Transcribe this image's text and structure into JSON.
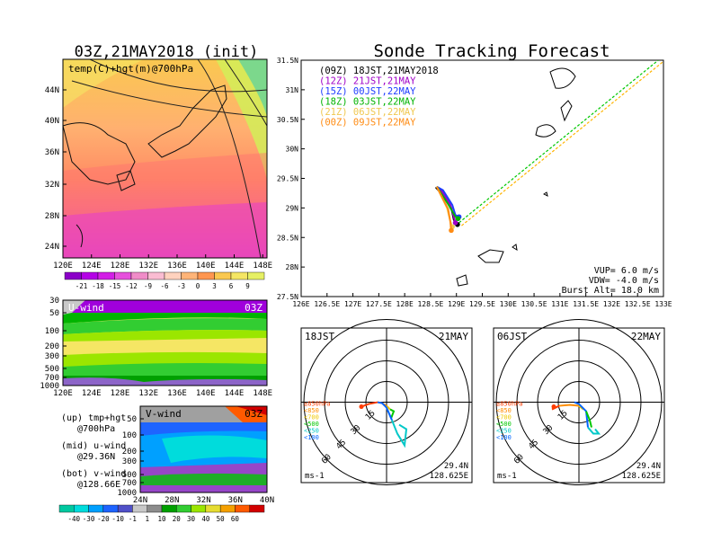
{
  "init_title": "03Z,21MAY2018 (init)",
  "main_title": "Sonde Tracking Forecast",
  "temp_map": {
    "label": "temp(C)+hgt(m)@700hPa",
    "lat_labels": [
      "44N",
      "40N",
      "36N",
      "32N",
      "28N",
      "24N"
    ],
    "lon_labels": [
      "120E",
      "124E",
      "128E",
      "132E",
      "136E",
      "140E",
      "144E",
      "148E"
    ],
    "colorbar_labels": [
      "-21",
      "-18",
      "-15",
      "-12",
      "-9",
      "-6",
      "-3",
      "0",
      "3",
      "6",
      "9"
    ],
    "colorbar_colors": [
      "#8b00c8",
      "#b400e6",
      "#d21ee6",
      "#e650dc",
      "#f08cc8",
      "#fabcd2",
      "#ffd2be",
      "#ffb478",
      "#ff9650",
      "#fac850",
      "#f5e664",
      "#e6f064"
    ]
  },
  "uwind": {
    "label": "U-wind",
    "time": "03Z",
    "p_labels": [
      "30",
      "50",
      "100",
      "200",
      "300",
      "500",
      "700",
      "1000"
    ],
    "lon_labels": [
      "120E",
      "124E",
      "128E",
      "132E",
      "136E",
      "140E",
      "144E",
      "148E"
    ]
  },
  "vwind": {
    "label": "V-wind",
    "time": "03Z",
    "p_labels": [
      "50",
      "100",
      "200",
      "300",
      "500",
      "700",
      "1000"
    ],
    "lat_labels": [
      "24N",
      "28N",
      "32N",
      "36N",
      "40N"
    ]
  },
  "legend_text": {
    "up1": "(up) tmp+hgt",
    "up2": "@700hPa",
    "mid1": "(mid) u-wind",
    "mid2": "@29.36N",
    "bot1": "(bot) v-wind",
    "bot2": "@128.66E"
  },
  "wind_colorbar": {
    "labels": [
      "-40",
      "-30",
      "-20",
      "-10",
      "-1",
      "1",
      "10",
      "20",
      "30",
      "40",
      "50",
      "60"
    ],
    "colors": [
      "#00c8a0",
      "#00dcdc",
      "#00a0ff",
      "#1e64ff",
      "#5050c8",
      "#c8c8c8",
      "#8c8c8c",
      "#00a000",
      "#32cd32",
      "#9be600",
      "#e6dc32",
      "#f5a000",
      "#ff5a00",
      "#d20000"
    ]
  },
  "chart_data": {
    "type": "line",
    "xlim": [
      126,
      133
    ],
    "ylim": [
      27.5,
      31.5
    ],
    "x_ticks": [
      "126E",
      "126.5E",
      "127E",
      "127.5E",
      "128E",
      "128.5E",
      "129E",
      "129.5E",
      "130E",
      "130.5E",
      "131E",
      "131.5E",
      "132E",
      "132.5E",
      "133E"
    ],
    "y_ticks": [
      "31.5N",
      "31N",
      "30.5N",
      "30N",
      "29.5N",
      "29N",
      "28.5N",
      "28N",
      "27.5N"
    ],
    "series": [
      {
        "name": "(09Z)  18JST,21MAY2018",
        "color": "#000000",
        "points": [
          [
            128.6,
            29.35
          ],
          [
            128.7,
            29.25
          ],
          [
            128.9,
            29.0
          ],
          [
            128.95,
            28.8
          ],
          [
            129.02,
            28.72
          ]
        ],
        "end": [
          129.02,
          28.72
        ]
      },
      {
        "name": "(12Z)  21JST,21MAY",
        "color": "#a000c8",
        "points": [
          [
            128.62,
            29.36
          ],
          [
            128.72,
            29.28
          ],
          [
            128.88,
            29.05
          ],
          [
            128.95,
            28.85
          ],
          [
            128.98,
            28.75
          ]
        ],
        "end": [
          128.98,
          28.75
        ]
      },
      {
        "name": "(15Z)  00JST,22MAY",
        "color": "#1e3cff",
        "points": [
          [
            128.62,
            29.36
          ],
          [
            128.74,
            29.3
          ],
          [
            128.92,
            29.05
          ],
          [
            128.98,
            28.88
          ],
          [
            129.05,
            28.85
          ]
        ],
        "end": [
          129.05,
          28.85
        ]
      },
      {
        "name": "(18Z)  03JST,22MAY",
        "color": "#00b400",
        "points": [
          [
            128.62,
            29.36
          ],
          [
            128.7,
            29.25
          ],
          [
            128.85,
            29.05
          ],
          [
            128.98,
            28.85
          ],
          [
            129.03,
            28.82
          ]
        ],
        "end": [
          129.03,
          28.82
        ]
      },
      {
        "name": "(21Z)  06JST,22MAY",
        "color": "#f0c850",
        "points": [
          [
            128.62,
            29.36
          ],
          [
            128.68,
            29.25
          ],
          [
            128.82,
            29.0
          ],
          [
            128.88,
            28.78
          ],
          [
            128.92,
            28.68
          ]
        ],
        "end": [
          128.92,
          28.68
        ]
      },
      {
        "name": "(00Z)  09JST,22MAY",
        "color": "#ff8c14",
        "points": [
          [
            128.62,
            29.36
          ],
          [
            128.7,
            29.22
          ],
          [
            128.84,
            28.98
          ],
          [
            128.88,
            28.78
          ],
          [
            128.9,
            28.62
          ]
        ],
        "end": [
          128.9,
          28.62
        ]
      }
    ],
    "diag_lines": [
      {
        "color": "#00c800",
        "from": [
          129.05,
          28.75
        ],
        "to": [
          132.9,
          31.5
        ]
      },
      {
        "color": "#ffb400",
        "from": [
          129.1,
          28.7
        ],
        "to": [
          133.0,
          31.48
        ]
      }
    ],
    "info": [
      "VUP=  6.0 m/s",
      "VDW= -4.0 m/s",
      "Burst Alt= 18.0 km"
    ]
  },
  "polar_left": {
    "time": "18JST",
    "date": "21MAY",
    "ring_labels": [
      "15",
      "30",
      "45",
      "60"
    ],
    "hpa_labels": [
      "≥850hPa",
      "<850",
      "<700",
      "<500",
      "<250",
      "<100"
    ],
    "hpa_colors": [
      "#ff3c00",
      "#ff8c00",
      "#f0c800",
      "#00c800",
      "#00c8c8",
      "#0064ff"
    ],
    "unit": "ms-1",
    "lat": "29.4N",
    "lon": "128.625E"
  },
  "polar_right": {
    "time": "06JST",
    "date": "22MAY",
    "ring_labels": [
      "15",
      "30",
      "45",
      "60"
    ],
    "hpa_labels": [
      "≥850hPa",
      "<850",
      "<700",
      "<500",
      "<250",
      "<100"
    ],
    "hpa_colors": [
      "#ff3c00",
      "#ff8c00",
      "#f0c800",
      "#00c800",
      "#00c8c8",
      "#0064ff"
    ],
    "unit": "ms-1",
    "lat": "29.4N",
    "lon": "128.625E"
  }
}
